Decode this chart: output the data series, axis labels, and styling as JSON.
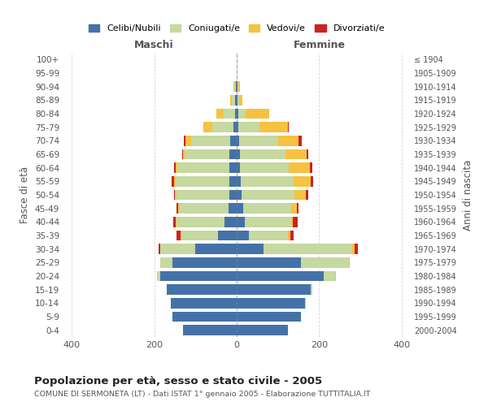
{
  "age_groups": [
    "0-4",
    "5-9",
    "10-14",
    "15-19",
    "20-24",
    "25-29",
    "30-34",
    "35-39",
    "40-44",
    "45-49",
    "50-54",
    "55-59",
    "60-64",
    "65-69",
    "70-74",
    "75-79",
    "80-84",
    "85-89",
    "90-94",
    "95-99",
    "100+"
  ],
  "birth_years": [
    "2000-2004",
    "1995-1999",
    "1990-1994",
    "1985-1989",
    "1980-1984",
    "1975-1979",
    "1970-1974",
    "1965-1969",
    "1960-1964",
    "1955-1959",
    "1950-1954",
    "1945-1949",
    "1940-1944",
    "1935-1939",
    "1930-1934",
    "1925-1929",
    "1920-1924",
    "1915-1919",
    "1910-1914",
    "1905-1909",
    "≤ 1904"
  ],
  "colors": {
    "celibi": "#4472a8",
    "coniugati": "#c5d9a0",
    "vedovi": "#f5c242",
    "divorziati": "#cc2222"
  },
  "maschi": {
    "celibi": [
      130,
      155,
      160,
      170,
      185,
      155,
      100,
      45,
      30,
      20,
      18,
      18,
      18,
      18,
      15,
      7,
      4,
      3,
      2,
      0,
      0
    ],
    "coniugati": [
      0,
      0,
      0,
      0,
      8,
      30,
      85,
      90,
      115,
      118,
      128,
      130,
      125,
      108,
      95,
      52,
      28,
      8,
      4,
      0,
      0
    ],
    "vedovi": [
      0,
      0,
      0,
      0,
      0,
      0,
      0,
      2,
      2,
      3,
      3,
      4,
      4,
      4,
      14,
      22,
      18,
      5,
      2,
      0,
      0
    ],
    "divorziati": [
      0,
      0,
      0,
      0,
      0,
      0,
      5,
      8,
      6,
      5,
      3,
      5,
      5,
      3,
      5,
      0,
      0,
      0,
      0,
      0,
      0
    ]
  },
  "femmine": {
    "celibi": [
      125,
      155,
      165,
      180,
      210,
      155,
      65,
      30,
      20,
      15,
      12,
      10,
      8,
      8,
      6,
      4,
      3,
      2,
      2,
      0,
      0
    ],
    "coniugati": [
      0,
      0,
      3,
      4,
      28,
      118,
      215,
      95,
      112,
      118,
      128,
      128,
      118,
      110,
      95,
      52,
      18,
      4,
      2,
      0,
      0
    ],
    "vedovi": [
      0,
      0,
      0,
      0,
      2,
      2,
      5,
      5,
      5,
      12,
      28,
      42,
      52,
      52,
      48,
      68,
      58,
      8,
      3,
      0,
      0
    ],
    "divorziati": [
      0,
      0,
      0,
      0,
      0,
      0,
      8,
      8,
      10,
      5,
      5,
      5,
      5,
      3,
      8,
      3,
      0,
      0,
      0,
      0,
      0
    ]
  },
  "xlim": 420,
  "xticks": [
    -400,
    -200,
    0,
    200,
    400
  ],
  "title": "Popolazione per età, sesso e stato civile - 2005",
  "subtitle": "COMUNE DI SERMONETA (LT) - Dati ISTAT 1° gennaio 2005 - Elaborazione TUTTITALIA.IT",
  "xlabel_left": "Maschi",
  "xlabel_right": "Femmine",
  "ylabel_left": "Fasce di età",
  "ylabel_right": "Anni di nascita",
  "bg_color": "#ffffff",
  "grid_color": "#cccccc",
  "label_color": "#555555"
}
